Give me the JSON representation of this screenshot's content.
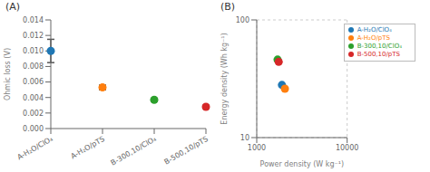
{
  "chart_data": [
    {
      "type": "scatter",
      "title": "(A)",
      "y_label": "Ohmic loss (V)",
      "categories": [
        "A-H₂O/ClO₄",
        "A-H₂O/pTS",
        "B-300,10/ClO₄",
        "B-500,10/pTS"
      ],
      "values": [
        0.01,
        0.0053,
        0.0037,
        0.0028
      ],
      "errors": [
        0.0015,
        0.0003,
        0.0002,
        0.0002
      ],
      "colors": [
        "#1f77b4",
        "#ff7f0e",
        "#2ca02c",
        "#d62728"
      ],
      "ylim": [
        0.0,
        0.014
      ],
      "yticks": [
        {
          "value": 0,
          "label": "0.000"
        },
        0.002,
        0.004,
        0.006,
        0.008,
        {
          "value": 0.01,
          "label": "0.010"
        },
        0.012,
        0.014
      ],
      "grid": false
    },
    {
      "type": "scatter",
      "title": "(B)",
      "x_label": "Power density (W kg⁻¹)",
      "y_label": "Energy density (Wh kg⁻¹)",
      "log": true,
      "xlim": [
        1000,
        10000
      ],
      "xticks": [
        1000,
        10000
      ],
      "ylim": [
        10,
        100
      ],
      "yticks": [
        10,
        100
      ],
      "grid": true,
      "legend": "upper right",
      "series": [
        {
          "name": "A-H₂O/ClO₄",
          "color": "#1f77b4",
          "x": [
            1900
          ],
          "values": [
            28
          ]
        },
        {
          "name": "A-H₂O/pTS",
          "color": "#ff7f0e",
          "x": [
            2050
          ],
          "values": [
            26
          ]
        },
        {
          "name": "B-300,10/ClO₄",
          "color": "#2ca02c",
          "x": [
            1700
          ],
          "values": [
            46
          ]
        },
        {
          "name": "B-500,10/pTS",
          "color": "#d62728",
          "x": [
            1750
          ],
          "values": [
            44
          ]
        }
      ]
    }
  ]
}
